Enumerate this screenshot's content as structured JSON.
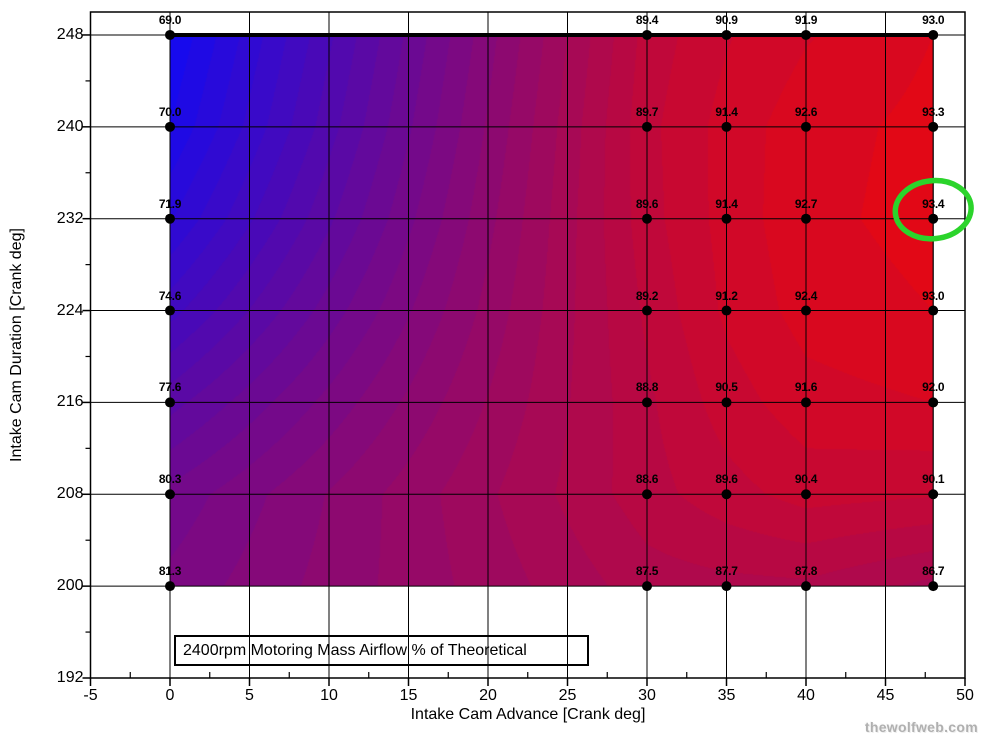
{
  "title_box": {
    "label": "2400rpm Motoring Mass Airflow % of Theoretical"
  },
  "watermark": {
    "label": "thewolfweb.com"
  },
  "chart_data": {
    "type": "heatmap",
    "subtype": "filled-contour",
    "title": "2400rpm Motoring Mass Airflow % of Theoretical",
    "xlabel": "Intake Cam Advance [Crank deg]",
    "ylabel": "Intake Cam Duration [Crank deg]",
    "xlim": [
      -5,
      50
    ],
    "ylim": [
      192,
      250
    ],
    "xticks": [
      -5,
      0,
      5,
      10,
      15,
      20,
      25,
      30,
      35,
      40,
      45,
      50
    ],
    "yticks": [
      192,
      200,
      208,
      216,
      224,
      232,
      240,
      248
    ],
    "x_minor_ticks": [
      -2.5,
      2.5,
      7.5,
      12.5,
      17.5,
      22.5,
      27.5,
      32.5,
      37.5,
      42.5,
      47.5
    ],
    "y_minor_ticks": [
      196,
      204,
      212,
      220,
      228,
      236,
      244
    ],
    "grid": true,
    "x": [
      0,
      30,
      35,
      40,
      48
    ],
    "y": [
      200,
      208,
      216,
      224,
      232,
      240,
      248
    ],
    "values": [
      [
        81.3,
        87.5,
        87.7,
        87.8,
        86.7
      ],
      [
        80.3,
        88.6,
        89.6,
        90.4,
        90.1
      ],
      [
        77.6,
        88.8,
        90.5,
        91.6,
        92.0
      ],
      [
        74.6,
        89.2,
        91.2,
        92.4,
        93.0
      ],
      [
        71.9,
        89.6,
        91.4,
        92.7,
        93.4
      ],
      [
        70.0,
        89.7,
        91.4,
        92.6,
        93.3
      ],
      [
        69.0,
        89.4,
        90.9,
        91.9,
        93.0
      ]
    ],
    "colormap": {
      "low_color": "#0a0afa",
      "high_color": "#e60812",
      "vmin": 68,
      "vmax": 94,
      "band_step": 1
    },
    "annotation_circle": {
      "x": 48,
      "y": 232,
      "value": 93.4,
      "color": "#2bd42b"
    }
  }
}
